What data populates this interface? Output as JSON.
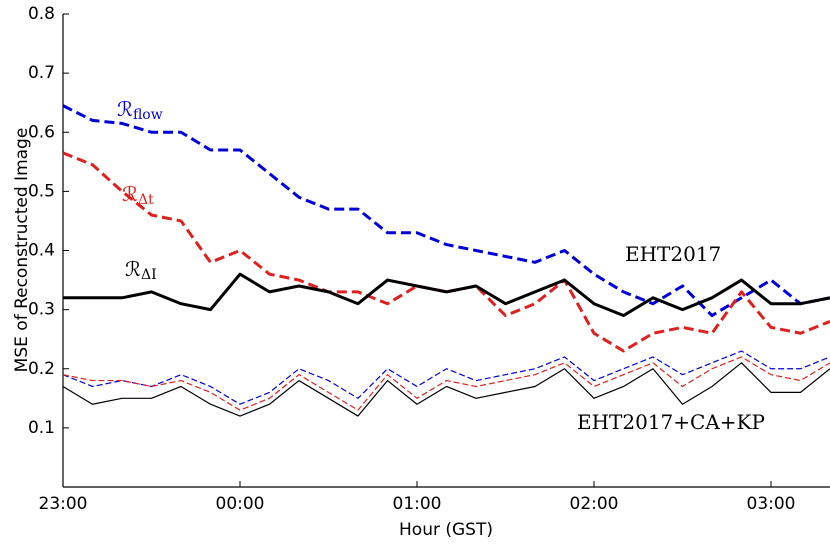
{
  "chart_data": {
    "type": "line",
    "xlabel": "Hour (GST)",
    "ylabel": "MSE of Reconstructed Image",
    "x": [
      0,
      10,
      20,
      30,
      40,
      50,
      60,
      70,
      80,
      90,
      100,
      110,
      120,
      130,
      140,
      150,
      160,
      170,
      180,
      190,
      200,
      210,
      220,
      230,
      240,
      250,
      260
    ],
    "xlim": [
      0,
      260
    ],
    "xticks": [
      {
        "value": 0,
        "label": "23:00"
      },
      {
        "value": 60,
        "label": "00:00"
      },
      {
        "value": 120,
        "label": "01:00"
      },
      {
        "value": 180,
        "label": "02:00"
      },
      {
        "value": 240,
        "label": "03:00"
      }
    ],
    "ylim": [
      0,
      0.8
    ],
    "yticks": [
      0.1,
      0.2,
      0.3,
      0.4,
      0.5,
      0.6,
      0.7,
      0.8
    ],
    "series": [
      {
        "color": "#0000dd",
        "style": "dashed",
        "width": 3,
        "values": [
          0.645,
          0.62,
          0.615,
          0.6,
          0.6,
          0.57,
          0.57,
          0.53,
          0.49,
          0.47,
          0.47,
          0.43,
          0.43,
          0.41,
          0.4,
          0.39,
          0.38,
          0.4,
          0.36,
          0.33,
          0.31,
          0.34,
          0.29,
          0.32,
          0.35,
          0.31,
          0.32
        ]
      },
      {
        "color": "#e0201e",
        "style": "dashed",
        "width": 3,
        "values": [
          0.565,
          0.545,
          0.5,
          0.46,
          0.45,
          0.38,
          0.4,
          0.36,
          0.35,
          0.33,
          0.33,
          0.31,
          0.34,
          0.33,
          0.34,
          0.29,
          0.31,
          0.35,
          0.26,
          0.23,
          0.26,
          0.27,
          0.26,
          0.33,
          0.27,
          0.26,
          0.28
        ]
      },
      {
        "color": "#000000",
        "style": "solid",
        "width": 3,
        "values": [
          0.32,
          0.32,
          0.32,
          0.33,
          0.31,
          0.3,
          0.36,
          0.33,
          0.34,
          0.33,
          0.31,
          0.35,
          0.34,
          0.33,
          0.34,
          0.31,
          0.33,
          0.35,
          0.31,
          0.29,
          0.32,
          0.3,
          0.32,
          0.35,
          0.31,
          0.31,
          0.32
        ]
      },
      {
        "color": "#0000dd",
        "style": "dashed",
        "width": 1.2,
        "values": [
          0.19,
          0.17,
          0.18,
          0.17,
          0.19,
          0.17,
          0.14,
          0.16,
          0.2,
          0.18,
          0.15,
          0.2,
          0.17,
          0.2,
          0.18,
          0.19,
          0.2,
          0.22,
          0.18,
          0.2,
          0.22,
          0.19,
          0.21,
          0.23,
          0.2,
          0.2,
          0.22
        ]
      },
      {
        "color": "#e0201e",
        "style": "dashed",
        "width": 1.2,
        "values": [
          0.19,
          0.18,
          0.18,
          0.17,
          0.18,
          0.16,
          0.13,
          0.15,
          0.19,
          0.16,
          0.13,
          0.19,
          0.15,
          0.18,
          0.17,
          0.18,
          0.19,
          0.21,
          0.17,
          0.19,
          0.21,
          0.17,
          0.2,
          0.22,
          0.19,
          0.18,
          0.21
        ]
      },
      {
        "color": "#000000",
        "style": "solid",
        "width": 1.2,
        "values": [
          0.17,
          0.14,
          0.15,
          0.15,
          0.17,
          0.14,
          0.12,
          0.14,
          0.18,
          0.15,
          0.12,
          0.18,
          0.14,
          0.17,
          0.15,
          0.16,
          0.17,
          0.2,
          0.15,
          0.17,
          0.2,
          0.14,
          0.17,
          0.21,
          0.16,
          0.16,
          0.2
        ]
      }
    ],
    "annotations": [
      {
        "text": "ℛ",
        "sub": "flow",
        "color": "#0000dd"
      },
      {
        "text": "ℛ",
        "sub": "Δt",
        "color": "#e0201e"
      },
      {
        "text": "ℛ",
        "sub": "ΔI",
        "color": "#000000"
      },
      {
        "text": "EHT2017",
        "color": "#000000"
      },
      {
        "text": "EHT2017+CA+KP",
        "color": "#000000"
      }
    ]
  }
}
